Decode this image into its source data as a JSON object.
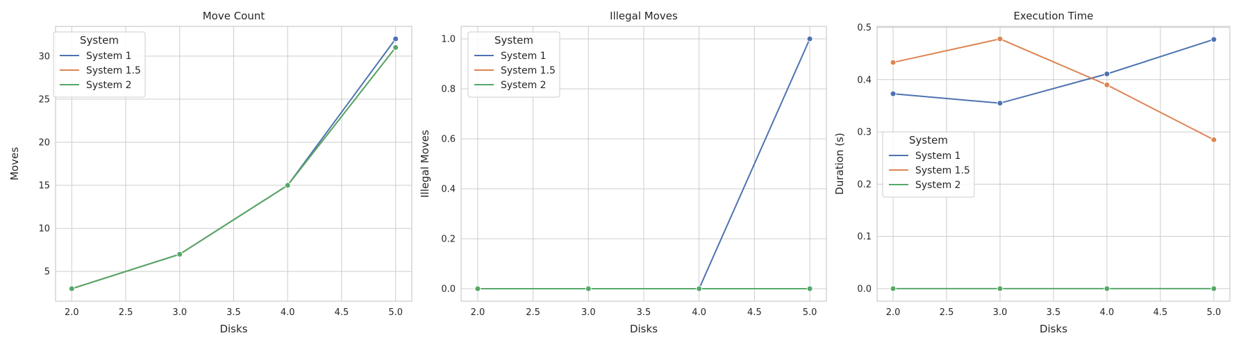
{
  "legend_title": "System",
  "colors": {
    "System 1": "#4c72b0",
    "System 1.5": "#dd8452",
    "System 2": "#55a868"
  },
  "chart_data": [
    {
      "type": "line",
      "title": "Move Count",
      "xlabel": "Disks",
      "ylabel": "Moves",
      "x": [
        2.0,
        3.0,
        4.0,
        5.0
      ],
      "xlim": [
        1.85,
        5.15
      ],
      "ylim": [
        1.55,
        33.45
      ],
      "xticks": [
        "2.0",
        "2.5",
        "3.0",
        "3.5",
        "4.0",
        "4.5",
        "5.0"
      ],
      "yticks": [
        "5",
        "10",
        "15",
        "20",
        "25",
        "30"
      ],
      "grid": true,
      "legend_position": "upper-left",
      "series": [
        {
          "name": "System 1",
          "values": [
            3,
            7,
            15,
            32
          ]
        },
        {
          "name": "System 1.5",
          "values": [
            3,
            7,
            15,
            31
          ]
        },
        {
          "name": "System 2",
          "values": [
            3,
            7,
            15,
            31
          ]
        }
      ]
    },
    {
      "type": "line",
      "title": "Illegal Moves",
      "xlabel": "Disks",
      "ylabel": "Illegal Moves",
      "x": [
        2.0,
        3.0,
        4.0,
        5.0
      ],
      "xlim": [
        1.85,
        5.15
      ],
      "ylim": [
        -0.05,
        1.05
      ],
      "xticks": [
        "2.0",
        "2.5",
        "3.0",
        "3.5",
        "4.0",
        "4.5",
        "5.0"
      ],
      "yticks": [
        "0.0",
        "0.2",
        "0.4",
        "0.6",
        "0.8",
        "1.0"
      ],
      "grid": true,
      "legend_position": "upper-left",
      "series": [
        {
          "name": "System 1",
          "values": [
            0,
            0,
            0,
            1
          ]
        },
        {
          "name": "System 1.5",
          "values": [
            0,
            0,
            0,
            0
          ]
        },
        {
          "name": "System 2",
          "values": [
            0,
            0,
            0,
            0
          ]
        }
      ]
    },
    {
      "type": "line",
      "title": "Execution Time",
      "xlabel": "Disks",
      "ylabel": "Duration (s)",
      "x": [
        2.0,
        3.0,
        4.0,
        5.0
      ],
      "xlim": [
        1.85,
        5.15
      ],
      "ylim": [
        -0.024,
        0.502
      ],
      "xticks": [
        "2.0",
        "2.5",
        "3.0",
        "3.5",
        "4.0",
        "4.5",
        "5.0"
      ],
      "yticks": [
        "0.0",
        "0.1",
        "0.2",
        "0.3",
        "0.4",
        "0.5"
      ],
      "grid": true,
      "legend_position": "center-left",
      "series": [
        {
          "name": "System 1",
          "values": [
            0.373,
            0.355,
            0.411,
            0.477
          ]
        },
        {
          "name": "System 1.5",
          "values": [
            0.433,
            0.478,
            0.39,
            0.285
          ]
        },
        {
          "name": "System 2",
          "values": [
            0.0,
            0.0,
            0.0,
            0.0
          ]
        }
      ]
    }
  ]
}
